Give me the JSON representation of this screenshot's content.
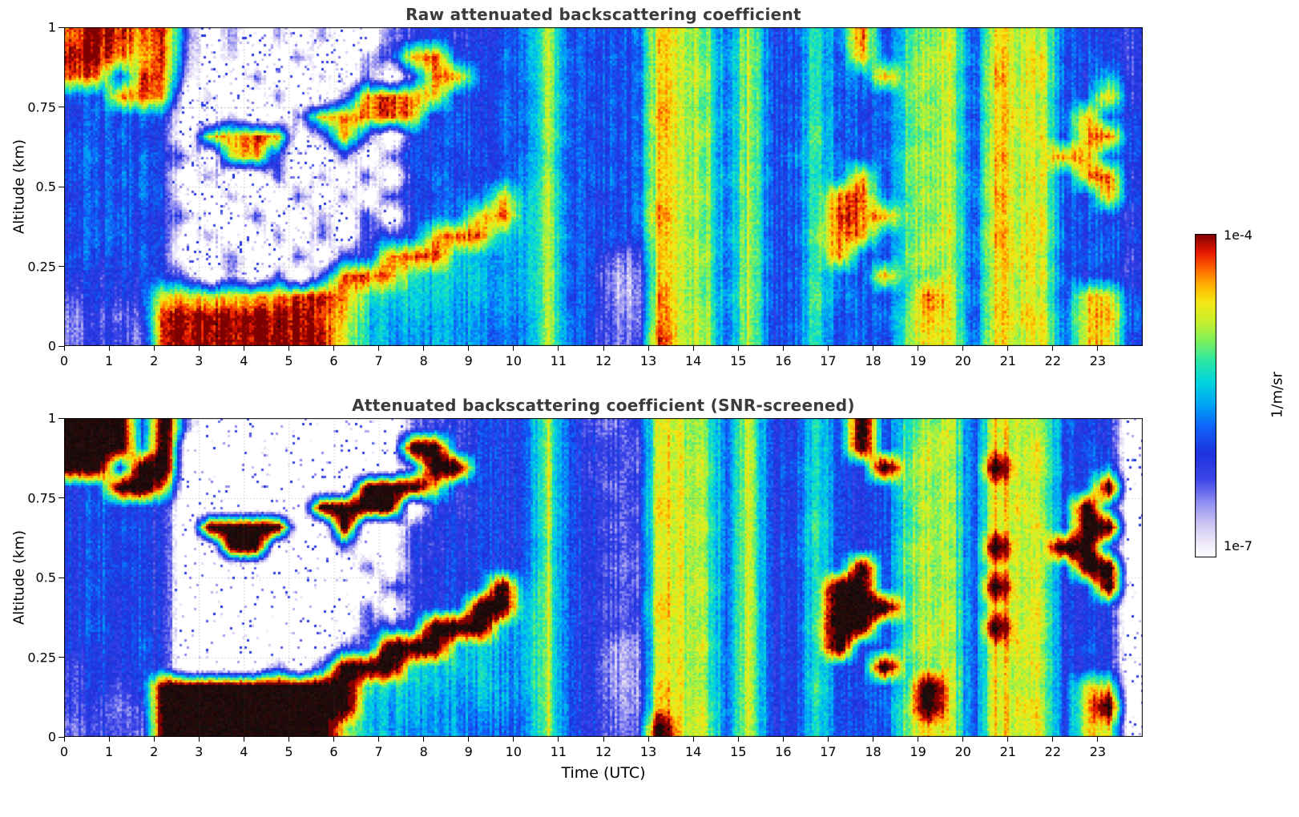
{
  "figure": {
    "background": "#ffffff",
    "title_color": "#3b3b3b"
  },
  "colorbar": {
    "stops": [
      [
        0.0,
        "#ffffff"
      ],
      [
        0.05,
        "#ece6fa"
      ],
      [
        0.1,
        "#cfc6f2"
      ],
      [
        0.17,
        "#8f8df0"
      ],
      [
        0.24,
        "#3c46e8"
      ],
      [
        0.32,
        "#1e32dd"
      ],
      [
        0.4,
        "#1060f8"
      ],
      [
        0.47,
        "#00a2f8"
      ],
      [
        0.54,
        "#00d4e0"
      ],
      [
        0.61,
        "#2ce8a4"
      ],
      [
        0.67,
        "#7ef05a"
      ],
      [
        0.73,
        "#c8f02c"
      ],
      [
        0.79,
        "#f5e814"
      ],
      [
        0.84,
        "#ffb400"
      ],
      [
        0.89,
        "#ff6a00"
      ],
      [
        0.94,
        "#ec1c00"
      ],
      [
        1.0,
        "#7e0000"
      ]
    ]
  },
  "chart_data": {
    "type": "heatmap",
    "panels": [
      {
        "title": "Raw attenuated backscattering coefficient",
        "grid": [
          "efede4.3.2.3..3454556b5656cba6b5696e59ab5cbb6554",
          "ffdce3.2..3..24de5566b6565cba7b6595d69bb6cbc5654",
          "ed5ed2..3..2.3.4dd656b5656cbb6b56966daba5dbc6584",
          "65dec.2..3..3dedc5565b6565cba6b659565aab6cbb56d4",
          "56565..2..3ddded46566b5656dba7b5696569ba5ccb6d65",
          "65654.cded.3d4.556565b6565cbb6b65a5659ab6cbc5de5",
          "665653.cd4..4.3655656a5656cba6b579656aba5dbbdd65",
          "65664.3..4.3.4.565566b5665cba7b6596d5aab6cbc5de4",
          "56565..3..4.3.45566c7b6556cbb6b569de69ba6dbb65d5",
          "656543..4..3.5.566ce7b5656dba6b659eddaab5cbc5654",
          "56655.3..3.4.455cee87b6565cba7b56add69bb6dbc6565",
          "65564..4..4.54dee8877b5633cbb6b659d65aba6ccb5664",
          "545553.3.4.5eed988877b6522cba6b56965d9ab5cbc6554",
          "4545ccbccdefd98887877b5622dba7b65a6659eb6cbb5cc5",
          "3434fffffffec87877776b6532dbb6b569566adb5ccc6cd6",
          "3443ffffffffb87777766b6533ebb6b569565acb6cbc6cc5"
        ]
      },
      {
        "title": "Attenuated backscattering coefficient (SNR-screened)",
        "grid": [
          "kkk5k3.........344555b5434cba6b5595k59ab5cbb655.",
          "kkk6k..........kk4555b5543cba6b5595k59bb5cbc565.",
          "kk5kk..........4kk555b5443cbb6b56955kaba5kbc657.",
          "55kkc........kkkc4555b5534cba6b559555aab5cbb56k.",
          "56554......kkkk.54555b5543dba6b5595559ba5ccb6k6.",
          "55654.kkkk..k..455555b5534cbb6b55a5559ab5cbc5kk.",
          "56554..kk...4..545555a5543cba6b569555aba5kbbkk5.",
          "55654........4.455555b5533cba6b5595k5aab5cbc5kk.",
          "56554.........44555k6b5543cbb6b559kk59ba5kbb55k.",
          "55554........4.455kk7b5534dba6b559kkkaab5cbc555.",
          "56554........455kkk87b5543cba6b55akk59bb5kbc555.",
          "55564.......44kkk8877b5522cbb6b559k55aba5ccb565.",
          "45554....4.5kkk988877b5522cba6b55955k9ab5cbc555.",
          "4545kkkkkkkkk98887877b5522dba6b55a5659kb5cbb5cc.",
          "4434kkkkkkkkk87877776b5532dbb6b559556akb5ccc5ck.",
          "3443kkkkkkkkb87777666b5533kbb6b559565acb5cbc5cc."
        ]
      }
    ],
    "value_encoding": "Each grid cell is one character sampled every 0.5 h (48 columns, 0-24 UTC) and 0.0625 km (16 rows, top row = 1 km). '.' = below 1e-7 1/m/sr (white / no signal), '1'-'f' = 15 logarithmic levels spanning 1e-7 to 1e-4 1/m/sr, 'k' = saturated / opaque return (black in SNR-screened panel).",
    "x": {
      "label": "Time (UTC)",
      "range": [
        0,
        24
      ],
      "ticks": [
        0,
        1,
        2,
        3,
        4,
        5,
        6,
        7,
        8,
        9,
        10,
        11,
        12,
        13,
        14,
        15,
        16,
        17,
        18,
        19,
        20,
        21,
        22,
        23
      ],
      "bins": 48
    },
    "y": {
      "label": "Altitude (km)",
      "range": [
        0,
        1
      ],
      "ticks": [
        0,
        0.25,
        0.5,
        0.75,
        1
      ],
      "tick_labels": [
        "0",
        "0.25",
        "0.5",
        "0.75",
        "1"
      ],
      "bins": 16
    },
    "color_scale": {
      "type": "log",
      "min": 1e-07,
      "max": 0.0001,
      "min_label": "1e-7",
      "max_label": "1e-4",
      "units": "1/m/sr",
      "colormap": "white-blue-cyan-green-yellow-orange-darkred (jet-like with white low end)"
    },
    "grid_lines": "dotted gray, vertical every 1 h, horizontal every 0.25 km",
    "legend_position": "vertical colorbar at right, spanning both panels"
  }
}
